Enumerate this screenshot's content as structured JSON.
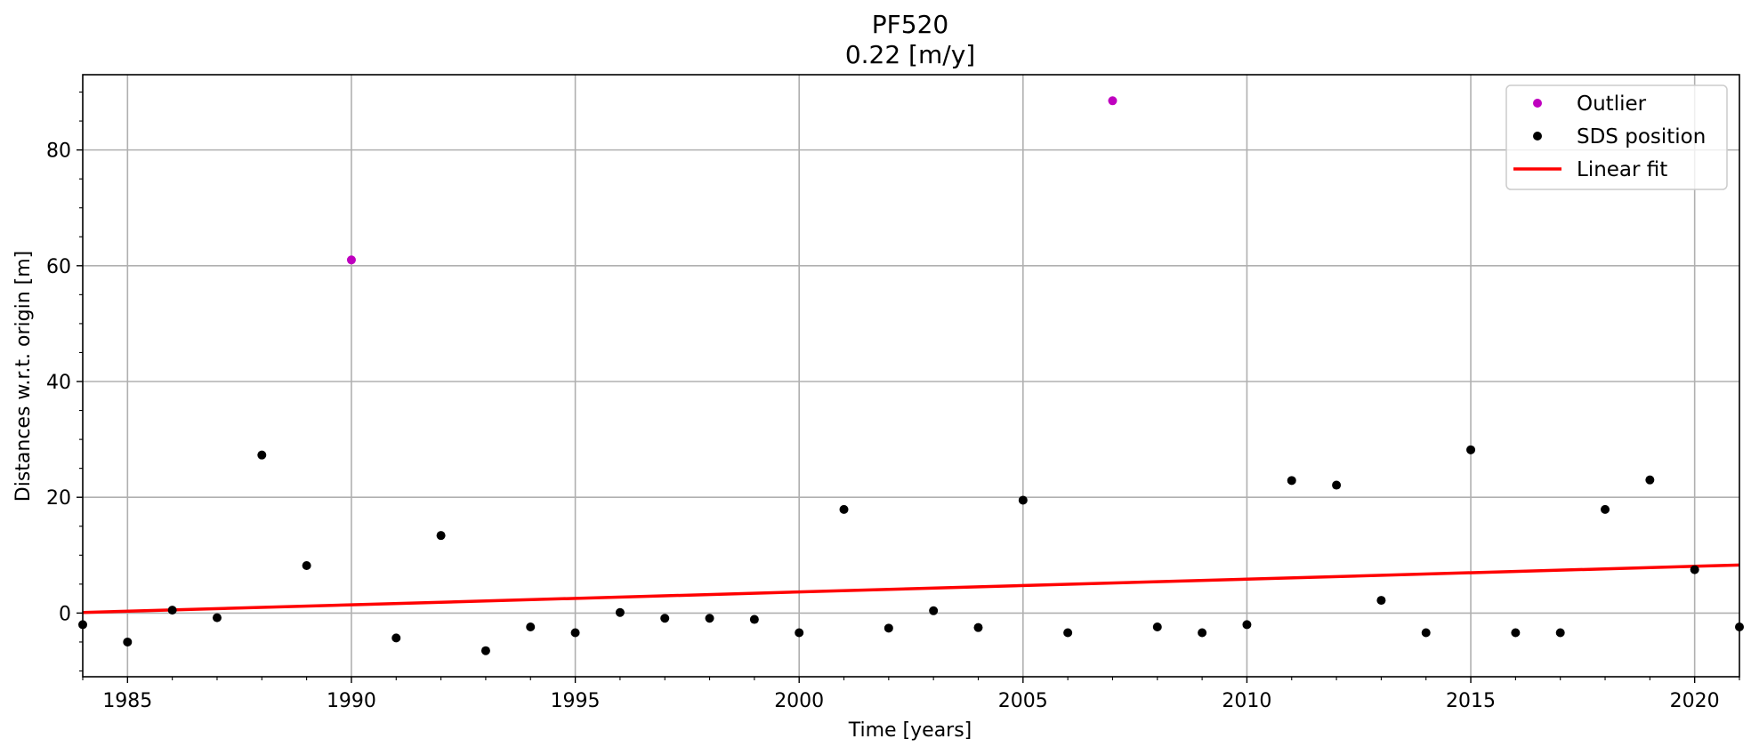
{
  "chart_data": {
    "type": "scatter",
    "title": "PF520",
    "subtitle": "0.22 [m/y]",
    "xlabel": "Time [years]",
    "ylabel": "Distances w.r.t. origin [m]",
    "xlim": [
      1984,
      2021
    ],
    "ylim": [
      -11,
      93
    ],
    "xticks": [
      1985,
      1990,
      1995,
      2000,
      2005,
      2010,
      2015,
      2020
    ],
    "yticks": [
      0,
      20,
      40,
      60,
      80
    ],
    "grid": true,
    "legend_position": "top-right",
    "series": [
      {
        "name": "Outlier",
        "kind": "scatter",
        "color": "#bf00bf",
        "points": [
          {
            "x": 1990,
            "y": 61.0
          },
          {
            "x": 2007,
            "y": 88.5
          }
        ]
      },
      {
        "name": "SDS position",
        "kind": "scatter",
        "color": "#000000",
        "points": [
          {
            "x": 1984,
            "y": -2.0
          },
          {
            "x": 1985,
            "y": -5.0
          },
          {
            "x": 1986,
            "y": 0.5
          },
          {
            "x": 1987,
            "y": -0.8
          },
          {
            "x": 1988,
            "y": 27.3
          },
          {
            "x": 1989,
            "y": 8.2
          },
          {
            "x": 1991,
            "y": -4.3
          },
          {
            "x": 1992,
            "y": 13.4
          },
          {
            "x": 1993,
            "y": -6.5
          },
          {
            "x": 1994,
            "y": -2.4
          },
          {
            "x": 1995,
            "y": -3.4
          },
          {
            "x": 1996,
            "y": 0.1
          },
          {
            "x": 1997,
            "y": -0.9
          },
          {
            "x": 1998,
            "y": -0.9
          },
          {
            "x": 1999,
            "y": -1.1
          },
          {
            "x": 2000,
            "y": -3.4
          },
          {
            "x": 2001,
            "y": 17.9
          },
          {
            "x": 2002,
            "y": -2.6
          },
          {
            "x": 2003,
            "y": 0.4
          },
          {
            "x": 2004,
            "y": -2.5
          },
          {
            "x": 2005,
            "y": 19.5
          },
          {
            "x": 2006,
            "y": -3.4
          },
          {
            "x": 2008,
            "y": -2.4
          },
          {
            "x": 2009,
            "y": -3.4
          },
          {
            "x": 2010,
            "y": -2.0
          },
          {
            "x": 2011,
            "y": 22.9
          },
          {
            "x": 2012,
            "y": 22.1
          },
          {
            "x": 2013,
            "y": 2.2
          },
          {
            "x": 2014,
            "y": -3.4
          },
          {
            "x": 2015,
            "y": 28.2
          },
          {
            "x": 2016,
            "y": -3.4
          },
          {
            "x": 2017,
            "y": -3.4
          },
          {
            "x": 2018,
            "y": 17.9
          },
          {
            "x": 2019,
            "y": 23.0
          },
          {
            "x": 2020,
            "y": 7.5
          },
          {
            "x": 2021,
            "y": -2.4
          }
        ]
      },
      {
        "name": "Linear fit",
        "kind": "line",
        "color": "#ff0000",
        "points": [
          {
            "x": 1984,
            "y": 0.1
          },
          {
            "x": 2021,
            "y": 8.3
          }
        ]
      }
    ]
  }
}
